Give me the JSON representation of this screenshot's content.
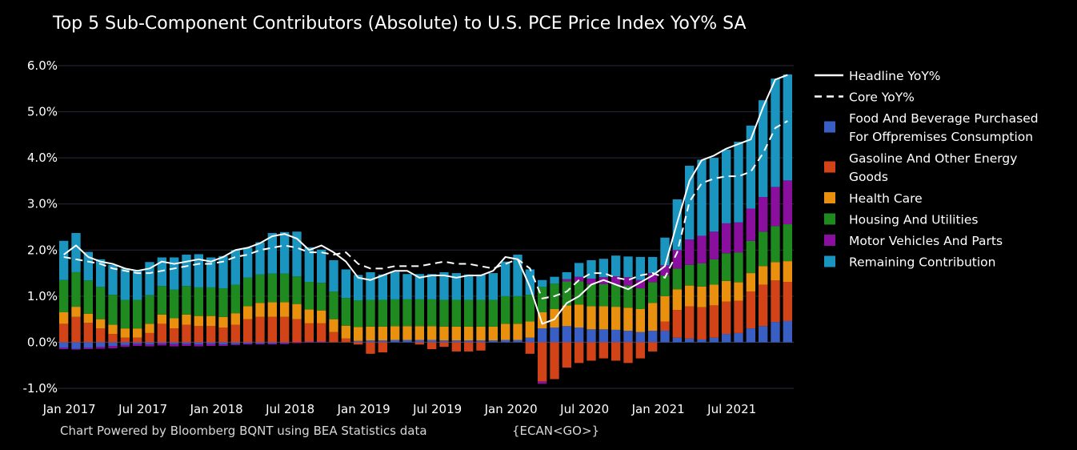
{
  "chart_data": {
    "type": "bar",
    "stacked": true,
    "title": "Top 5 Sub-Component Contributors (Absolute) to U.S. PCE Price Index YoY% SA",
    "source": "Chart Powered by Bloomberg BQNT using BEA Statistics data",
    "source_code": "{ECAN<GO>}",
    "ylim": [
      -1.0,
      6.0
    ],
    "yticks": [
      -1.0,
      0.0,
      1.0,
      2.0,
      3.0,
      4.0,
      5.0,
      6.0
    ],
    "ytick_labels": [
      "-1.0%",
      "0.0%",
      "1.0%",
      "2.0%",
      "3.0%",
      "4.0%",
      "5.0%",
      "6.0%"
    ],
    "grid": true,
    "legend_position": "right",
    "x": [
      "2017-01",
      "2017-02",
      "2017-03",
      "2017-04",
      "2017-05",
      "2017-06",
      "2017-07",
      "2017-08",
      "2017-09",
      "2017-10",
      "2017-11",
      "2017-12",
      "2018-01",
      "2018-02",
      "2018-03",
      "2018-04",
      "2018-05",
      "2018-06",
      "2018-07",
      "2018-08",
      "2018-09",
      "2018-10",
      "2018-11",
      "2018-12",
      "2019-01",
      "2019-02",
      "2019-03",
      "2019-04",
      "2019-05",
      "2019-06",
      "2019-07",
      "2019-08",
      "2019-09",
      "2019-10",
      "2019-11",
      "2019-12",
      "2020-01",
      "2020-02",
      "2020-03",
      "2020-04",
      "2020-05",
      "2020-06",
      "2020-07",
      "2020-08",
      "2020-09",
      "2020-10",
      "2020-11",
      "2020-12",
      "2021-01",
      "2021-02",
      "2021-03",
      "2021-04",
      "2021-05",
      "2021-06",
      "2021-07",
      "2021-08",
      "2021-09",
      "2021-10",
      "2021-11",
      "2021-12"
    ],
    "x_tick_labels": [
      {
        "index": 0,
        "label": "Jan 2017"
      },
      {
        "index": 6,
        "label": "Jul 2017"
      },
      {
        "index": 12,
        "label": "Jan 2018"
      },
      {
        "index": 18,
        "label": "Jul 2018"
      },
      {
        "index": 24,
        "label": "Jan 2019"
      },
      {
        "index": 30,
        "label": "Jul 2019"
      },
      {
        "index": 36,
        "label": "Jan 2020"
      },
      {
        "index": 42,
        "label": "Jul 2020"
      },
      {
        "index": 48,
        "label": "Jan 2021"
      },
      {
        "index": 54,
        "label": "Jul 2021"
      }
    ],
    "series": [
      {
        "name": "Food And Beverage Purchased For Offpremises Consumption",
        "color": "#3a5fc4",
        "values": [
          -0.12,
          -0.14,
          -0.12,
          -0.1,
          -0.08,
          -0.06,
          -0.04,
          -0.05,
          -0.03,
          -0.04,
          -0.04,
          -0.05,
          -0.04,
          -0.05,
          -0.04,
          -0.03,
          -0.03,
          -0.03,
          -0.02,
          0.0,
          0.01,
          0.01,
          0.0,
          0.0,
          0.03,
          0.04,
          0.04,
          0.05,
          0.05,
          0.05,
          0.05,
          0.04,
          0.04,
          0.04,
          0.04,
          0.04,
          0.05,
          0.05,
          0.1,
          0.3,
          0.32,
          0.35,
          0.32,
          0.28,
          0.28,
          0.27,
          0.25,
          0.22,
          0.25,
          0.25,
          0.1,
          0.08,
          0.06,
          0.1,
          0.18,
          0.2,
          0.3,
          0.35,
          0.44,
          0.46
        ]
      },
      {
        "name": "Gasoline And Other Energy Goods",
        "color": "#d24418",
        "values": [
          0.4,
          0.55,
          0.42,
          0.3,
          0.18,
          0.1,
          0.1,
          0.2,
          0.4,
          0.3,
          0.38,
          0.35,
          0.35,
          0.32,
          0.38,
          0.5,
          0.55,
          0.55,
          0.55,
          0.5,
          0.4,
          0.4,
          0.22,
          0.08,
          -0.05,
          -0.25,
          -0.22,
          0.0,
          0.0,
          -0.05,
          -0.15,
          -0.1,
          -0.2,
          -0.2,
          -0.18,
          0.0,
          0.0,
          0.0,
          -0.25,
          -0.85,
          -0.8,
          -0.55,
          -0.45,
          -0.4,
          -0.35,
          -0.4,
          -0.45,
          -0.35,
          -0.2,
          0.2,
          0.6,
          0.7,
          0.7,
          0.7,
          0.7,
          0.7,
          0.8,
          0.9,
          0.9,
          0.85
        ]
      },
      {
        "name": "Health Care",
        "color": "#e9900f",
        "values": [
          0.25,
          0.22,
          0.2,
          0.2,
          0.2,
          0.2,
          0.2,
          0.2,
          0.2,
          0.22,
          0.22,
          0.22,
          0.22,
          0.23,
          0.25,
          0.28,
          0.3,
          0.32,
          0.32,
          0.33,
          0.3,
          0.28,
          0.28,
          0.28,
          0.3,
          0.3,
          0.3,
          0.3,
          0.3,
          0.3,
          0.3,
          0.3,
          0.3,
          0.3,
          0.3,
          0.3,
          0.35,
          0.35,
          0.35,
          0.35,
          0.4,
          0.45,
          0.5,
          0.5,
          0.5,
          0.5,
          0.5,
          0.5,
          0.6,
          0.55,
          0.45,
          0.45,
          0.45,
          0.45,
          0.45,
          0.4,
          0.4,
          0.4,
          0.4,
          0.45
        ]
      },
      {
        "name": "Housing And Utilities",
        "color": "#1f8a1f",
        "values": [
          0.7,
          0.75,
          0.72,
          0.7,
          0.65,
          0.62,
          0.62,
          0.62,
          0.62,
          0.62,
          0.62,
          0.62,
          0.62,
          0.62,
          0.62,
          0.62,
          0.62,
          0.62,
          0.62,
          0.6,
          0.6,
          0.6,
          0.6,
          0.6,
          0.58,
          0.58,
          0.58,
          0.58,
          0.58,
          0.58,
          0.58,
          0.58,
          0.58,
          0.58,
          0.58,
          0.58,
          0.6,
          0.6,
          0.58,
          0.55,
          0.55,
          0.52,
          0.5,
          0.48,
          0.48,
          0.48,
          0.48,
          0.45,
          0.45,
          0.45,
          0.45,
          0.45,
          0.5,
          0.55,
          0.6,
          0.65,
          0.7,
          0.75,
          0.78,
          0.8
        ]
      },
      {
        "name": "Motor Vehicles And Parts",
        "color": "#8b0f9e",
        "values": [
          -0.03,
          -0.02,
          -0.03,
          -0.04,
          -0.05,
          -0.04,
          -0.04,
          -0.04,
          -0.04,
          -0.05,
          -0.04,
          -0.04,
          -0.04,
          -0.03,
          -0.02,
          -0.02,
          -0.02,
          -0.02,
          -0.02,
          -0.02,
          -0.01,
          -0.01,
          0.0,
          0.0,
          0.0,
          0.0,
          0.0,
          0.0,
          0.0,
          0.0,
          0.0,
          0.0,
          0.0,
          0.0,
          0.0,
          0.0,
          0.0,
          0.0,
          0.0,
          -0.05,
          0.0,
          0.05,
          0.1,
          0.12,
          0.15,
          0.18,
          0.18,
          0.18,
          0.2,
          0.22,
          0.4,
          0.55,
          0.6,
          0.6,
          0.65,
          0.65,
          0.7,
          0.75,
          0.85,
          0.95
        ]
      },
      {
        "name": "Remaining Contribution",
        "color": "#1a95c0",
        "values": [
          0.85,
          0.85,
          0.62,
          0.6,
          0.65,
          0.68,
          0.65,
          0.72,
          0.62,
          0.7,
          0.68,
          0.72,
          0.65,
          0.7,
          0.75,
          0.65,
          0.7,
          0.88,
          0.9,
          0.97,
          0.75,
          0.72,
          0.68,
          0.62,
          0.55,
          0.6,
          0.55,
          0.6,
          0.55,
          0.55,
          0.55,
          0.6,
          0.58,
          0.55,
          0.55,
          0.58,
          0.75,
          0.9,
          0.55,
          0.15,
          0.15,
          0.15,
          0.3,
          0.4,
          0.4,
          0.45,
          0.45,
          0.5,
          0.35,
          0.6,
          1.1,
          1.6,
          1.65,
          1.6,
          1.6,
          1.75,
          1.8,
          2.1,
          2.35,
          2.3
        ]
      }
    ],
    "lines": [
      {
        "name": "Headline YoY%",
        "color": "#ffffff",
        "style": "solid",
        "values": [
          1.9,
          2.1,
          1.85,
          1.75,
          1.7,
          1.6,
          1.55,
          1.6,
          1.75,
          1.7,
          1.75,
          1.8,
          1.75,
          1.85,
          2.0,
          2.05,
          2.15,
          2.3,
          2.35,
          2.25,
          2.0,
          2.1,
          1.95,
          1.75,
          1.4,
          1.35,
          1.45,
          1.55,
          1.55,
          1.4,
          1.45,
          1.45,
          1.4,
          1.45,
          1.45,
          1.55,
          1.85,
          1.8,
          1.2,
          0.4,
          0.5,
          0.85,
          1.0,
          1.25,
          1.35,
          1.25,
          1.15,
          1.3,
          1.45,
          1.65,
          2.6,
          3.5,
          3.95,
          4.05,
          4.2,
          4.3,
          4.4,
          5.1,
          5.7,
          5.8
        ]
      },
      {
        "name": "Core YoY%",
        "color": "#ffffff",
        "style": "dashed",
        "values": [
          1.85,
          1.8,
          1.75,
          1.7,
          1.6,
          1.55,
          1.5,
          1.5,
          1.55,
          1.6,
          1.65,
          1.7,
          1.7,
          1.75,
          1.85,
          1.9,
          2.0,
          2.05,
          2.1,
          2.05,
          1.95,
          1.95,
          1.9,
          1.95,
          1.7,
          1.6,
          1.6,
          1.65,
          1.65,
          1.65,
          1.7,
          1.75,
          1.7,
          1.7,
          1.65,
          1.6,
          1.7,
          1.8,
          1.6,
          0.95,
          1.0,
          1.1,
          1.35,
          1.5,
          1.5,
          1.4,
          1.35,
          1.45,
          1.5,
          1.4,
          1.95,
          3.05,
          3.45,
          3.55,
          3.6,
          3.6,
          3.7,
          4.1,
          4.65,
          4.8
        ]
      }
    ],
    "legend": [
      {
        "label_lines": [
          "Headline YoY%"
        ],
        "kind": "solid-line",
        "color": "#ffffff"
      },
      {
        "label_lines": [
          "Core YoY%"
        ],
        "kind": "dashed-line",
        "color": "#ffffff"
      },
      {
        "label_lines": [
          "Food And Beverage Purchased",
          "For Offpremises Consumption"
        ],
        "kind": "box",
        "color": "#3a5fc4"
      },
      {
        "label_lines": [
          "Gasoline And Other Energy",
          "Goods"
        ],
        "kind": "box",
        "color": "#d24418"
      },
      {
        "label_lines": [
          "Health Care"
        ],
        "kind": "box",
        "color": "#e9900f"
      },
      {
        "label_lines": [
          "Housing And Utilities"
        ],
        "kind": "box",
        "color": "#1f8a1f"
      },
      {
        "label_lines": [
          "Motor Vehicles And Parts"
        ],
        "kind": "box",
        "color": "#8b0f9e"
      },
      {
        "label_lines": [
          "Remaining Contribution"
        ],
        "kind": "box",
        "color": "#1a95c0"
      }
    ]
  }
}
